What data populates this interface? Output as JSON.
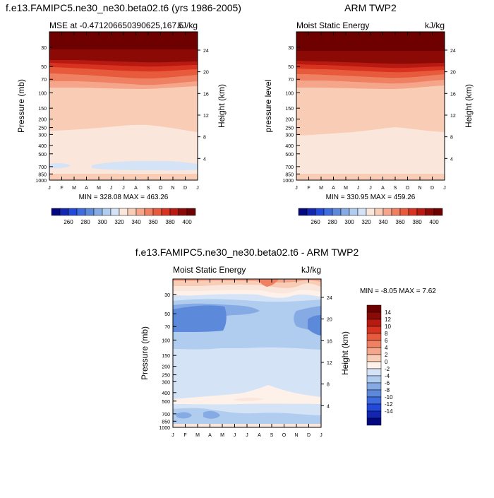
{
  "colors": {
    "levels_red": [
      "#fbe6dc",
      "#f9ccb6",
      "#f4a58a",
      "#ef8062",
      "#e85a3c",
      "#d83220",
      "#b81a11",
      "#8c0a06",
      "#6e0000"
    ],
    "levels_blue": [
      "#d4e4f6",
      "#b0ccee",
      "#86abe4",
      "#5d89da",
      "#3e6bde",
      "#2349d8",
      "#1226b2",
      "#04087e"
    ],
    "neutral": "#fdf1ea"
  },
  "months": [
    "J",
    "F",
    "M",
    "A",
    "M",
    "J",
    "J",
    "A",
    "S",
    "O",
    "N",
    "D",
    "J"
  ],
  "plots": [
    {
      "title": "f.e13.FAMIPC5.ne30_ne30.beta02.t6 (yrs 1986-2005)",
      "left_label": "MSE at -0.471206650390625,167.5",
      "right_label": "kJ/kg",
      "ylabel": "Pressure (mb)",
      "y2label": "Height (km)",
      "minmax": "MIN = 328.08 MAX = 463.26"
    },
    {
      "title": "ARM TWP2",
      "left_label": "Moist Static Energy",
      "right_label": "kJ/kg",
      "ylabel": "pressure level",
      "y2label": "Height (km)",
      "minmax": "MIN = 330.95 MAX = 459.26"
    },
    {
      "title": "f.e13.FAMIPC5.ne30_ne30.beta02.t6 - ARM TWP2",
      "left_label": "Moist Static Energy",
      "right_label": "kJ/kg",
      "ylabel": "Pressure (mb)",
      "y2label": "Height (km)",
      "minmax": "MIN =  -8.05 MAX =   7.62"
    }
  ],
  "colorbar_top": {
    "labels": [
      "260",
      "280",
      "300",
      "320",
      "340",
      "360",
      "380",
      "400"
    ]
  },
  "colorbar_diff": {
    "labels": [
      "14",
      "12",
      "10",
      "8",
      "6",
      "4",
      "2",
      "0",
      "-2",
      "-4",
      "-6",
      "-8",
      "-10",
      "-12",
      "-14"
    ]
  },
  "chart_data": [
    {
      "type": "heatmap",
      "title": "f.e13.FAMIPC5.ne30_ne30.beta02.t6 (yrs 1986-2005)",
      "subtitle": "MSE at -0.471206650390625,167.5",
      "units": "kJ/kg",
      "xlabel": "",
      "ylabel": "Pressure (mb)",
      "y2label": "Height (km)",
      "x": [
        "J",
        "F",
        "M",
        "A",
        "M",
        "J",
        "J",
        "A",
        "S",
        "O",
        "N",
        "D",
        "J"
      ],
      "y_ticks": [
        30,
        50,
        70,
        100,
        150,
        200,
        250,
        300,
        400,
        500,
        700,
        850,
        1000
      ],
      "y2_ticks": [
        24,
        20,
        16,
        12,
        8,
        4
      ],
      "ylim": [
        1000,
        20
      ],
      "y_scale": "log",
      "contour_levels": [
        250,
        260,
        270,
        280,
        290,
        300,
        310,
        320,
        330,
        340,
        350,
        360,
        370,
        380,
        390,
        400,
        410
      ],
      "min": 328.08,
      "max": 463.26
    },
    {
      "type": "heatmap",
      "title": "ARM TWP2",
      "subtitle": "Moist Static Energy",
      "units": "kJ/kg",
      "xlabel": "",
      "ylabel": "pressure level",
      "y2label": "Height (km)",
      "x": [
        "J",
        "F",
        "M",
        "A",
        "M",
        "J",
        "J",
        "A",
        "S",
        "O",
        "N",
        "D",
        "J"
      ],
      "y_ticks": [
        30,
        50,
        70,
        100,
        150,
        200,
        250,
        300,
        400,
        500,
        700,
        850,
        1000
      ],
      "y2_ticks": [
        24,
        20,
        16,
        12,
        8,
        4
      ],
      "ylim": [
        1000,
        20
      ],
      "y_scale": "log",
      "contour_levels": [
        250,
        260,
        270,
        280,
        290,
        300,
        310,
        320,
        330,
        340,
        350,
        360,
        370,
        380,
        390,
        400,
        410
      ],
      "min": 330.95,
      "max": 459.26
    },
    {
      "type": "heatmap",
      "title": "f.e13.FAMIPC5.ne30_ne30.beta02.t6 - ARM TWP2",
      "subtitle": "Moist Static Energy",
      "units": "kJ/kg",
      "xlabel": "",
      "ylabel": "Pressure (mb)",
      "y2label": "Height (km)",
      "x": [
        "J",
        "F",
        "M",
        "A",
        "M",
        "J",
        "J",
        "A",
        "S",
        "O",
        "N",
        "D",
        "J"
      ],
      "y_ticks": [
        30,
        50,
        70,
        100,
        150,
        200,
        250,
        300,
        400,
        500,
        700,
        850,
        1000
      ],
      "y2_ticks": [
        24,
        20,
        16,
        12,
        8,
        4
      ],
      "ylim": [
        1000,
        20
      ],
      "y_scale": "log",
      "contour_levels": [
        -14,
        -12,
        -10,
        -8,
        -6,
        -4,
        -2,
        0,
        2,
        4,
        6,
        8,
        10,
        12,
        14
      ],
      "min": -8.05,
      "max": 7.62
    }
  ]
}
